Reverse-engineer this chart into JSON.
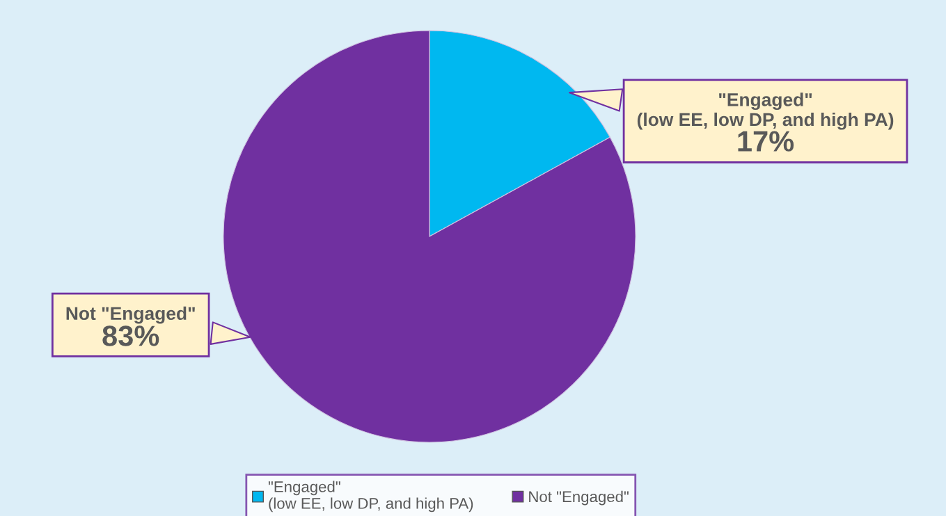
{
  "chart_data": {
    "type": "pie",
    "categories": [
      "\"Engaged\"\n(low EE, low DP, and high PA)",
      "Not \"Engaged\""
    ],
    "values": [
      17,
      83
    ],
    "colors": [
      "#00b8f0",
      "#7030a0"
    ],
    "value_labels": [
      "17%",
      "83%"
    ],
    "legend": "bottom"
  }
}
